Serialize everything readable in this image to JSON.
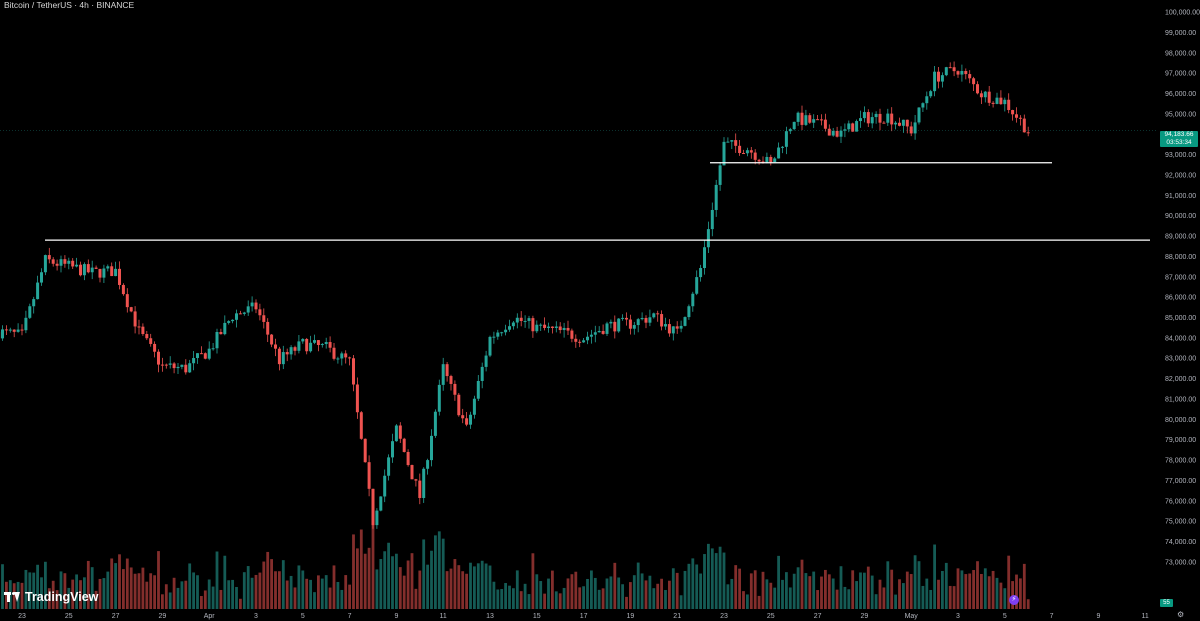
{
  "header": {
    "title": "Bitcoin / TetherUS · 4h · BINANCE"
  },
  "brand": {
    "name": "TradingView"
  },
  "last_price": {
    "value": "94,183.66",
    "countdown": "03:53:34"
  },
  "volume_badge": "55",
  "icons": {
    "logo": "tradingview-logo-icon",
    "bolt": "lightning-bolt-icon",
    "settings": "gear-icon"
  },
  "colors": {
    "up": "#26a69a",
    "down": "#ef5350",
    "background": "#000000",
    "level_line": "#ffffff"
  },
  "chart_data": {
    "type": "candlestick",
    "symbol": "Bitcoin / TetherUS",
    "interval": "4h",
    "exchange": "BINANCE",
    "x_ticks": [
      "23",
      "25",
      "27",
      "29",
      "Apr",
      "3",
      "5",
      "7",
      "9",
      "11",
      "13",
      "15",
      "17",
      "19",
      "21",
      "23",
      "25",
      "27",
      "29",
      "May",
      "3",
      "5",
      "7",
      "9",
      "11"
    ],
    "y_ticks": [
      "100,000.00",
      "99,000.00",
      "98,000.00",
      "97,000.00",
      "96,000.00",
      "95,000.00",
      "94,000.00",
      "93,000.00",
      "92,000.00",
      "91,000.00",
      "90,000.00",
      "89,000.00",
      "88,000.00",
      "87,000.00",
      "86,000.00",
      "85,000.00",
      "84,000.00",
      "83,000.00",
      "82,000.00",
      "81,000.00",
      "80,000.00",
      "79,000.00",
      "78,000.00",
      "77,000.00",
      "76,000.00",
      "75,000.00",
      "74,000.00",
      "73,000.00"
    ],
    "ylim": [
      72600,
      100150
    ],
    "horizontal_levels": [
      88800,
      92600
    ],
    "close_anchors": [
      [
        "2025-03-22",
        84300
      ],
      [
        "2025-03-23",
        84100
      ],
      [
        "2025-03-24",
        87800
      ],
      [
        "2025-03-25",
        87500
      ],
      [
        "2025-03-26",
        87200
      ],
      [
        "2025-03-27",
        87300
      ],
      [
        "2025-03-28",
        84300
      ],
      [
        "2025-03-29",
        82600
      ],
      [
        "2025-03-30",
        82500
      ],
      [
        "2025-03-31",
        83400
      ],
      [
        "2025-04-01",
        85100
      ],
      [
        "2025-04-02",
        85500
      ],
      [
        "2025-04-03",
        82900
      ],
      [
        "2025-04-04",
        83700
      ],
      [
        "2025-04-05",
        83500
      ],
      [
        "2025-04-06",
        82800
      ],
      [
        "2025-04-07",
        75000
      ],
      [
        "2025-04-08",
        79500
      ],
      [
        "2025-04-09",
        76200
      ],
      [
        "2025-04-10",
        82500
      ],
      [
        "2025-04-11",
        79500
      ],
      [
        "2025-04-12",
        84000
      ],
      [
        "2025-04-13",
        85000
      ],
      [
        "2025-04-14",
        84500
      ],
      [
        "2025-04-15",
        84300
      ],
      [
        "2025-04-16",
        84000
      ],
      [
        "2025-04-17",
        84600
      ],
      [
        "2025-04-18",
        84700
      ],
      [
        "2025-04-19",
        85100
      ],
      [
        "2025-04-20",
        84200
      ],
      [
        "2025-04-21",
        87400
      ],
      [
        "2025-04-22",
        93500
      ],
      [
        "2025-04-23",
        93300
      ],
      [
        "2025-04-24",
        92500
      ],
      [
        "2025-04-25",
        94800
      ],
      [
        "2025-04-26",
        94500
      ],
      [
        "2025-04-27",
        94000
      ],
      [
        "2025-04-28",
        94800
      ],
      [
        "2025-04-29",
        94900
      ],
      [
        "2025-04-30",
        94200
      ],
      [
        "2025-05-01",
        96800
      ],
      [
        "2025-05-02",
        97200
      ],
      [
        "2025-05-03",
        96000
      ],
      [
        "2025-05-04",
        95600
      ],
      [
        "2025-05-05",
        94183.66
      ]
    ],
    "volume_note": "4h volume histogram at bottom; peaks near Apr 7-9 and Apr 22",
    "last_price": 94183.66
  }
}
